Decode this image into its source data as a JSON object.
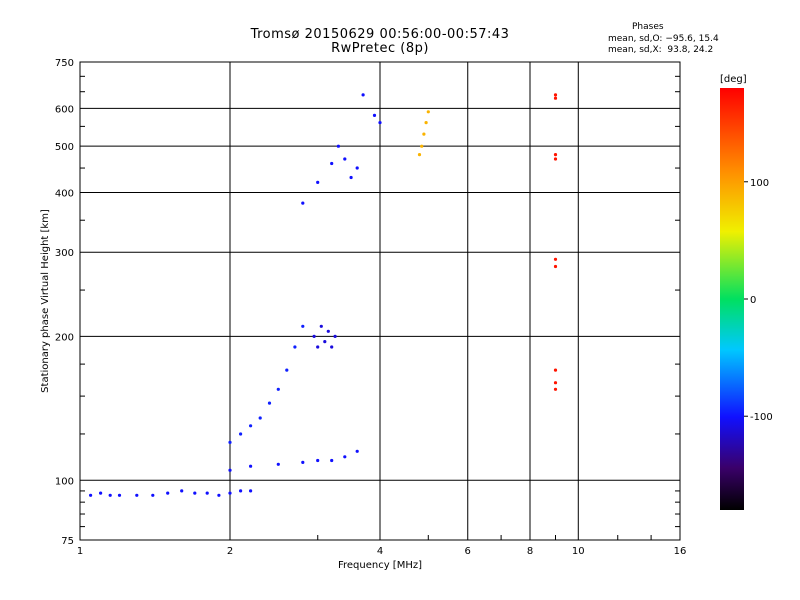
{
  "header": {
    "title_line1": "Tromsø 20150629 00:56:00-00:57:43",
    "title_line2": "RwPretec (8p)"
  },
  "phases_box": {
    "title": "Phases",
    "line1": "mean, sd,O: −95.6, 15.4",
    "line2": "mean, sd,X:  93.8, 24.2"
  },
  "colors": {
    "background": "#ffffff",
    "grid": "#000000",
    "trace_blue": "#1a2de0",
    "trace_yellow": "#e8e800",
    "trace_red": "#e00000"
  },
  "chart_data": {
    "type": "scatter",
    "xlabel": "Frequency [MHz]",
    "ylabel": "Stationary phase Virtual Height [km]",
    "x_scale": "log",
    "y_scale": "log",
    "xlim": [
      1,
      16
    ],
    "ylim": [
      75,
      750
    ],
    "x_ticks": [
      1,
      2,
      4,
      6,
      8,
      10,
      16
    ],
    "x_tick_labels": [
      "1",
      "2",
      "4",
      "6",
      "8",
      "10",
      "16"
    ],
    "y_ticks": [
      75,
      100,
      200,
      300,
      400,
      500,
      600,
      750
    ],
    "y_tick_labels": [
      "75",
      "100",
      "200",
      "300",
      "400",
      "500",
      "600",
      "750"
    ],
    "grid": true,
    "colorbar": {
      "label": "[deg]",
      "range": [
        -180,
        180
      ],
      "ticks": [
        100,
        0,
        -100
      ],
      "tick_labels": [
        "100",
        "0",
        "-100"
      ],
      "colormap": "rainbow (black → purple → blue → cyan → green → yellow → orange → red)"
    },
    "traces": [
      {
        "description": "E-region / low trace (blue)",
        "phase_deg": -100,
        "points": [
          [
            1.05,
            93
          ],
          [
            1.1,
            94
          ],
          [
            1.15,
            93
          ],
          [
            1.2,
            93
          ],
          [
            1.3,
            93
          ],
          [
            1.4,
            93
          ],
          [
            1.5,
            94
          ],
          [
            1.6,
            95
          ],
          [
            1.7,
            94
          ],
          [
            1.8,
            94
          ],
          [
            1.9,
            93
          ],
          [
            2.0,
            94
          ],
          [
            2.1,
            95
          ],
          [
            2.2,
            95
          ]
        ]
      },
      {
        "description": "F1 rising trace (blue)",
        "phase_deg": -95,
        "points": [
          [
            2.0,
            120
          ],
          [
            2.1,
            125
          ],
          [
            2.2,
            130
          ],
          [
            2.3,
            135
          ],
          [
            2.4,
            145
          ],
          [
            2.5,
            155
          ],
          [
            2.6,
            170
          ],
          [
            2.7,
            190
          ],
          [
            2.8,
            210
          ]
        ]
      },
      {
        "description": "Sporadic flat ~110 km trace (blue)",
        "phase_deg": -100,
        "points": [
          [
            2.0,
            105
          ],
          [
            2.2,
            107
          ],
          [
            2.5,
            108
          ],
          [
            2.8,
            109
          ],
          [
            3.0,
            110
          ],
          [
            3.2,
            110
          ],
          [
            3.4,
            112
          ],
          [
            3.6,
            115
          ]
        ]
      },
      {
        "description": "F1 cusp cluster ~200 km (purple/blue)",
        "phase_deg": -110,
        "points": [
          [
            2.95,
            200
          ],
          [
            3.0,
            190
          ],
          [
            3.05,
            210
          ],
          [
            3.1,
            195
          ],
          [
            3.15,
            205
          ],
          [
            3.2,
            190
          ],
          [
            3.25,
            200
          ]
        ]
      },
      {
        "description": "F2 O-mode cluster (blue)",
        "phase_deg": -100,
        "points": [
          [
            2.8,
            380
          ],
          [
            3.0,
            420
          ],
          [
            3.2,
            460
          ],
          [
            3.3,
            500
          ],
          [
            3.4,
            470
          ],
          [
            3.5,
            430
          ],
          [
            3.6,
            450
          ],
          [
            3.7,
            640
          ],
          [
            3.9,
            580
          ],
          [
            4.0,
            560
          ]
        ]
      },
      {
        "description": "F2 X-mode trace (yellow)",
        "phase_deg": 90,
        "points": [
          [
            4.8,
            480
          ],
          [
            4.85,
            500
          ],
          [
            4.9,
            530
          ],
          [
            4.95,
            560
          ],
          [
            5.0,
            590
          ]
        ]
      },
      {
        "description": "Scattered echoes (red)",
        "phase_deg": 170,
        "points": [
          [
            9.0,
            640
          ],
          [
            9.0,
            630
          ],
          [
            9.0,
            480
          ],
          [
            9.0,
            470
          ],
          [
            9.0,
            290
          ],
          [
            9.0,
            280
          ],
          [
            9.0,
            170
          ],
          [
            9.0,
            160
          ],
          [
            9.0,
            155
          ]
        ]
      }
    ]
  }
}
